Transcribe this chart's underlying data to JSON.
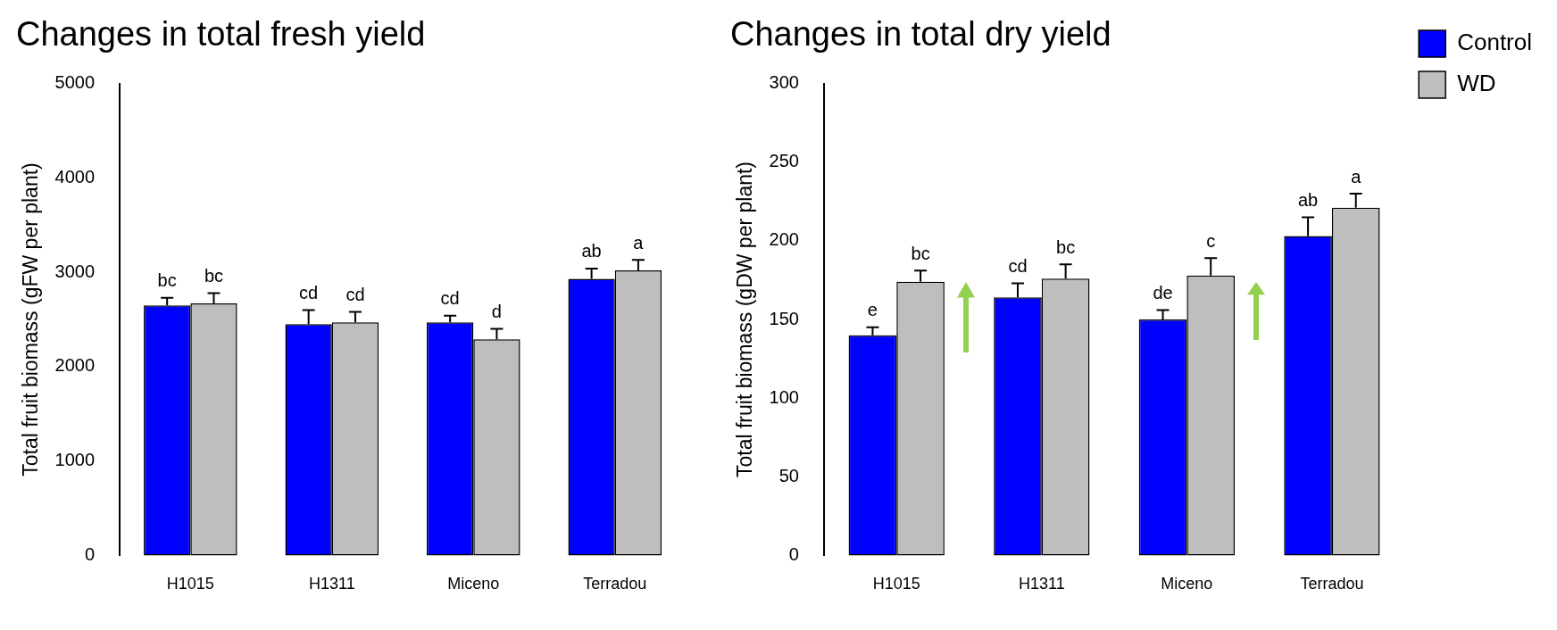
{
  "chart_data": [
    {
      "type": "bar",
      "title": "Changes in total fresh yield",
      "ylabel": "Total fruit biomass (gFW per plant)",
      "categories": [
        "H1015",
        "H1311",
        "Miceno",
        "Terradou"
      ],
      "ylim": [
        0,
        5000
      ],
      "yticks": [
        0,
        1000,
        2000,
        3000,
        4000,
        5000
      ],
      "grid": false,
      "legend": false,
      "series": [
        {
          "color": "#0000ff",
          "values": [
            2650,
            2450,
            2470,
            2930
          ],
          "errors": [
            [
              2650,
              2730
            ],
            [
              2450,
              2600
            ],
            [
              2470,
              2540
            ],
            [
              2930,
              3040
            ]
          ],
          "value_labels": [
            "bc",
            "cd",
            "cd",
            "ab"
          ]
        },
        {
          "color": "#bebebe",
          "values": [
            2670,
            2470,
            2290,
            3020
          ],
          "errors": [
            [
              2670,
              2780
            ],
            [
              2470,
              2580
            ],
            [
              2290,
              2400
            ],
            [
              3020,
              3130
            ]
          ],
          "value_labels": [
            "bc",
            "cd",
            "d",
            "a"
          ]
        }
      ]
    },
    {
      "type": "bar",
      "title": "Changes in total dry yield",
      "ylabel": "Total fruit biomass (gDW per plant)",
      "categories": [
        "H1015",
        "H1311",
        "Miceno",
        "Terradou"
      ],
      "ylim": [
        0,
        300
      ],
      "yticks": [
        0,
        50,
        100,
        150,
        200,
        250,
        300
      ],
      "grid": false,
      "legend": "top right",
      "series": [
        {
          "name": "Control",
          "color": "#0000ff",
          "values": [
            140,
            164,
            150,
            203
          ],
          "errors": [
            [
              140,
              145
            ],
            [
              164,
              173
            ],
            [
              150,
              156
            ],
            [
              203,
              215
            ]
          ],
          "value_labels": [
            "e",
            "cd",
            "de",
            "ab"
          ]
        },
        {
          "name": "WD",
          "color": "#bebebe",
          "values": [
            174,
            176,
            178,
            221
          ],
          "errors": [
            [
              174,
              181
            ],
            [
              176,
              185
            ],
            [
              178,
              189
            ],
            [
              221,
              230
            ]
          ],
          "value_labels": [
            "bc",
            "bc",
            "c",
            "a"
          ]
        }
      ]
    }
  ]
}
